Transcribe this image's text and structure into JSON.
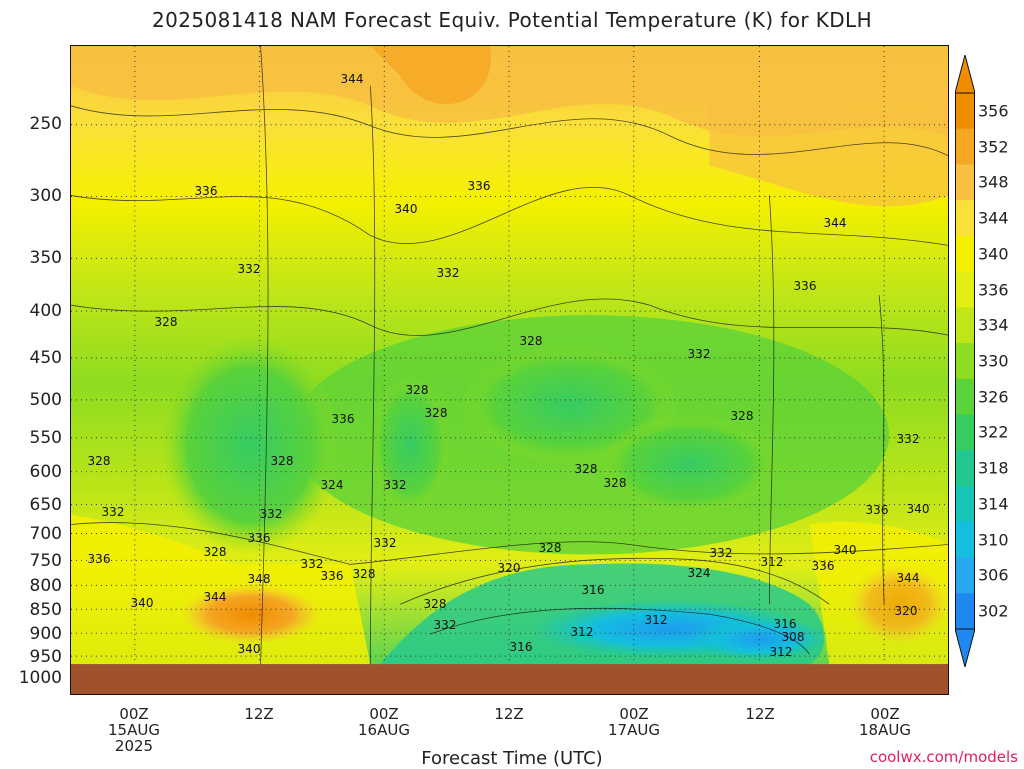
{
  "title": "2025081418 NAM Forecast Equiv. Potential Temperature (K) for KDLH",
  "xlabel": "Forecast Time (UTC)",
  "credit": "coolwx.com/models",
  "chart_data": {
    "type": "heatmap",
    "title": "2025081418 NAM Forecast Equiv. Potential Temperature (K) for KDLH",
    "xlabel": "Forecast Time (UTC)",
    "ylabel": "",
    "y_ticks": [
      "250",
      "300",
      "350",
      "400",
      "450",
      "500",
      "550",
      "600",
      "650",
      "700",
      "750",
      "800",
      "850",
      "900",
      "950",
      "1000"
    ],
    "x_ticks": [
      {
        "line1": "00Z",
        "line2": "15AUG",
        "line3": "2025"
      },
      {
        "line1": "12Z",
        "line2": "",
        "line3": ""
      },
      {
        "line1": "00Z",
        "line2": "16AUG",
        "line3": ""
      },
      {
        "line1": "12Z",
        "line2": "",
        "line3": ""
      },
      {
        "line1": "00Z",
        "line2": "17AUG",
        "line3": ""
      },
      {
        "line1": "12Z",
        "line2": "",
        "line3": ""
      },
      {
        "line1": "00Z",
        "line2": "18AUG",
        "line3": ""
      }
    ],
    "colorbar_ticks": [
      "356",
      "352",
      "348",
      "344",
      "340",
      "336",
      "334",
      "330",
      "326",
      "322",
      "318",
      "314",
      "310",
      "306",
      "302"
    ],
    "colorbar_colors": [
      "#f08c00",
      "#f5a623",
      "#f8c040",
      "#fbe03a",
      "#f5f000",
      "#e2ee14",
      "#c0e618",
      "#8edc20",
      "#5ad23a",
      "#36cc62",
      "#22c890",
      "#16c4b8",
      "#14bedf",
      "#28a8f0",
      "#1e88f0"
    ],
    "contour_labels": [
      "344",
      "336",
      "340",
      "336",
      "332",
      "328",
      "328",
      "332",
      "344",
      "332",
      "328",
      "336",
      "328",
      "328",
      "332",
      "328",
      "328",
      "324",
      "332",
      "328",
      "328",
      "332",
      "332",
      "336",
      "332",
      "336",
      "348",
      "340",
      "344",
      "336",
      "328",
      "340",
      "336",
      "336",
      "340",
      "332",
      "328",
      "320",
      "324",
      "332",
      "328",
      "336",
      "344",
      "340",
      "316",
      "312",
      "308",
      "312",
      "312",
      "316",
      "320",
      "316",
      "312",
      "328",
      "332"
    ]
  }
}
